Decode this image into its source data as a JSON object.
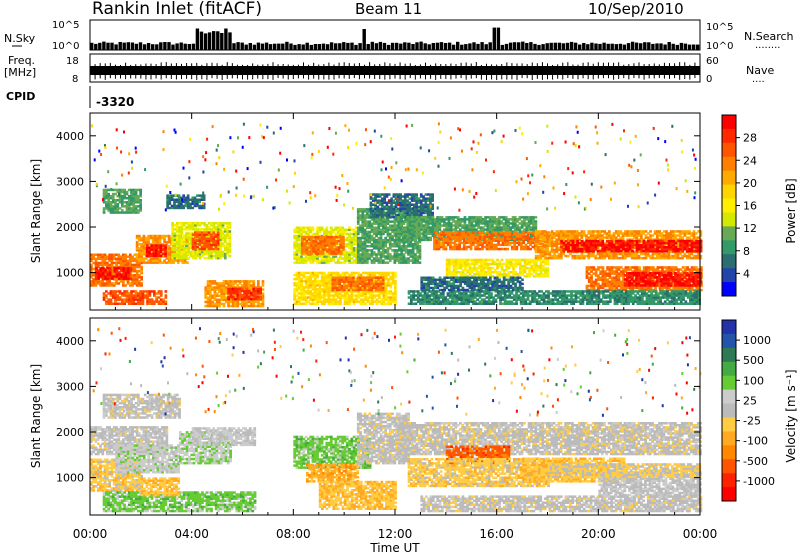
{
  "header": {
    "station": "Rankin Inlet (fitACF)",
    "beam": "Beam 11",
    "date": "10/Sep/2010"
  },
  "nsky_panel": {
    "left_label": "N.Sky",
    "right_label": "N.Search",
    "right_dots": "........",
    "left_ticks": [
      "10^5",
      "10^0"
    ],
    "right_ticks": [
      "10^5",
      "10^0"
    ]
  },
  "freq_panel": {
    "left_label_line1": "Freq.",
    "left_label_line2": "[MHz]",
    "right_label": "Nave",
    "right_dots": "....",
    "left_ticks": [
      "18",
      "8"
    ],
    "right_ticks": [
      "60",
      "0"
    ]
  },
  "cpid": {
    "label": "CPID",
    "value": "-3320"
  },
  "time_axis": {
    "ticks": [
      "00:00",
      "04:00",
      "08:00",
      "12:00",
      "16:00",
      "20:00",
      "00:00"
    ],
    "label": "Time UT"
  },
  "power_panel": {
    "ylabel": "Slant Range [km]",
    "yticks": [
      "4000",
      "3000",
      "2000",
      "1000"
    ],
    "colorbar_label": "Power [dB]",
    "colorbar_ticks": [
      "28",
      "24",
      "20",
      "16",
      "12",
      "8",
      "4"
    ],
    "colors": [
      "#ff0000",
      "#ff2a00",
      "#ff5500",
      "#ff8000",
      "#ffaa00",
      "#ffd400",
      "#ffee00",
      "#d4e800",
      "#66aa55",
      "#339966",
      "#2a6e70",
      "#2244aa",
      "#0000ff"
    ]
  },
  "velocity_panel": {
    "ylabel": "Slant Range [km]",
    "yticks": [
      "4000",
      "3000",
      "2000",
      "1000"
    ],
    "colorbar_label": "Velocity [m s⁻¹]",
    "colorbar_ticks": [
      "1000",
      "500",
      "100",
      "25",
      "-25",
      "-100",
      "-500",
      "-1000"
    ],
    "colors": [
      "#2233aa",
      "#2255aa",
      "#2e7a55",
      "#44aa44",
      "#66cc33",
      "#cccccc",
      "#bbbbbb",
      "#ffcc44",
      "#ffaa22",
      "#ff8800",
      "#ff5500",
      "#ff2200",
      "#ff0000"
    ]
  },
  "chart_data": [
    {
      "type": "line",
      "title": "N.Sky / N.Search",
      "x_range_hours": [
        0,
        24
      ],
      "y_scale": "log",
      "ylim": [
        "10^0",
        "10^5"
      ]
    },
    {
      "type": "line",
      "title": "Freq. [MHz] / Nave",
      "x_range_hours": [
        0,
        24
      ],
      "ylim_left": [
        8,
        18
      ],
      "ylim_right": [
        0,
        60
      ],
      "freq_mhz_approx": 11
    },
    {
      "type": "heatmap",
      "title": "Power [dB]",
      "xlabel": "Time UT",
      "ylabel": "Slant Range [km]",
      "x_range_hours": [
        0,
        24
      ],
      "ylim": [
        180,
        4500
      ],
      "color_range": [
        0,
        32
      ],
      "patches": [
        {
          "t0": 0.0,
          "t1": 2.0,
          "r0": 700,
          "r1": 1400,
          "v": 24
        },
        {
          "t0": 0.2,
          "t1": 1.6,
          "r0": 850,
          "r1": 1100,
          "v": 30
        },
        {
          "t0": 0.5,
          "t1": 3.0,
          "r0": 300,
          "r1": 600,
          "v": 26
        },
        {
          "t0": 1.8,
          "t1": 3.8,
          "r0": 1200,
          "r1": 1800,
          "v": 22
        },
        {
          "t0": 2.2,
          "t1": 3.0,
          "r0": 1350,
          "r1": 1600,
          "v": 30
        },
        {
          "t0": 3.2,
          "t1": 5.5,
          "r0": 1300,
          "r1": 2100,
          "v": 14
        },
        {
          "t0": 4.0,
          "t1": 5.0,
          "r0": 1500,
          "r1": 1900,
          "v": 26
        },
        {
          "t0": 4.5,
          "t1": 6.8,
          "r0": 250,
          "r1": 800,
          "v": 22
        },
        {
          "t0": 5.4,
          "t1": 6.7,
          "r0": 400,
          "r1": 650,
          "v": 28
        },
        {
          "t0": 0.5,
          "t1": 2.0,
          "r0": 2300,
          "r1": 2800,
          "v": 10
        },
        {
          "t0": 3.0,
          "t1": 4.5,
          "r0": 2400,
          "r1": 2700,
          "v": 6
        },
        {
          "t0": 8.0,
          "t1": 10.5,
          "r0": 1200,
          "r1": 2000,
          "v": 14
        },
        {
          "t0": 8.3,
          "t1": 10.0,
          "r0": 1400,
          "r1": 1800,
          "v": 24
        },
        {
          "t0": 8.0,
          "t1": 12.0,
          "r0": 300,
          "r1": 1000,
          "v": 18
        },
        {
          "t0": 9.5,
          "t1": 11.5,
          "r0": 600,
          "r1": 900,
          "v": 24
        },
        {
          "t0": 10.5,
          "t1": 13.0,
          "r0": 1200,
          "r1": 2400,
          "v": 10
        },
        {
          "t0": 11.0,
          "t1": 13.5,
          "r0": 2200,
          "r1": 2700,
          "v": 6
        },
        {
          "t0": 12.0,
          "t1": 17.5,
          "r0": 1700,
          "r1": 2200,
          "v": 10
        },
        {
          "t0": 13.5,
          "t1": 18.0,
          "r0": 1500,
          "r1": 1900,
          "v": 24
        },
        {
          "t0": 14.0,
          "t1": 18.0,
          "r0": 900,
          "r1": 1300,
          "v": 16
        },
        {
          "t0": 17.5,
          "t1": 24.0,
          "r0": 1300,
          "r1": 1900,
          "v": 22
        },
        {
          "t0": 18.5,
          "t1": 24.0,
          "r0": 1450,
          "r1": 1700,
          "v": 30
        },
        {
          "t0": 19.5,
          "t1": 24.0,
          "r0": 600,
          "r1": 1100,
          "v": 24
        },
        {
          "t0": 21.0,
          "t1": 24.0,
          "r0": 700,
          "r1": 1000,
          "v": 30
        },
        {
          "t0": 12.5,
          "t1": 24.0,
          "r0": 300,
          "r1": 600,
          "v": 8
        },
        {
          "t0": 13.0,
          "t1": 17.0,
          "r0": 600,
          "r1": 900,
          "v": 6
        }
      ]
    },
    {
      "type": "heatmap",
      "title": "Velocity [m s^-1]",
      "xlabel": "Time UT",
      "ylabel": "Slant Range [km]",
      "x_range_hours": [
        0,
        24
      ],
      "ylim": [
        180,
        4500
      ],
      "color_range": [
        -1000,
        1000
      ],
      "patches": [
        {
          "t0": 0.0,
          "t1": 3.0,
          "r0": 1500,
          "r1": 2100,
          "v": 20
        },
        {
          "t0": 0.0,
          "t1": 2.0,
          "r0": 700,
          "r1": 1400,
          "v": -150
        },
        {
          "t0": 1.0,
          "t1": 3.5,
          "r0": 1100,
          "r1": 1700,
          "v": 150
        },
        {
          "t0": 3.5,
          "t1": 5.5,
          "r0": 1300,
          "r1": 2000,
          "v": 200
        },
        {
          "t0": 4.0,
          "t1": 6.5,
          "r0": 1700,
          "r1": 2100,
          "v": 80
        },
        {
          "t0": 0.5,
          "t1": 6.5,
          "r0": 250,
          "r1": 700,
          "v": 300
        },
        {
          "t0": 2.0,
          "t1": 3.5,
          "r0": 600,
          "r1": 1000,
          "v": -200
        },
        {
          "t0": 0.5,
          "t1": 3.5,
          "r0": 2300,
          "r1": 2800,
          "v": 10
        },
        {
          "t0": 8.0,
          "t1": 11.0,
          "r0": 1200,
          "r1": 1900,
          "v": 300
        },
        {
          "t0": 8.5,
          "t1": 10.5,
          "r0": 900,
          "r1": 1300,
          "v": -300
        },
        {
          "t0": 9.0,
          "t1": 12.0,
          "r0": 300,
          "r1": 900,
          "v": -200
        },
        {
          "t0": 10.5,
          "t1": 12.5,
          "r0": 1300,
          "r1": 2400,
          "v": 10
        },
        {
          "t0": 12.0,
          "t1": 24.0,
          "r0": 1500,
          "r1": 2200,
          "v": 0
        },
        {
          "t0": 14.0,
          "t1": 16.5,
          "r0": 1300,
          "r1": 1700,
          "v": -600
        },
        {
          "t0": 12.5,
          "t1": 18.0,
          "r0": 800,
          "r1": 1400,
          "v": -150
        },
        {
          "t0": 17.0,
          "t1": 21.0,
          "r0": 900,
          "r1": 1400,
          "v": -200
        },
        {
          "t0": 20.0,
          "t1": 24.0,
          "r0": 600,
          "r1": 1100,
          "v": 60
        },
        {
          "t0": 18.0,
          "t1": 24.0,
          "r0": 1000,
          "r1": 1300,
          "v": -80
        },
        {
          "t0": 13.0,
          "t1": 24.0,
          "r0": 250,
          "r1": 600,
          "v": 10
        }
      ]
    }
  ]
}
